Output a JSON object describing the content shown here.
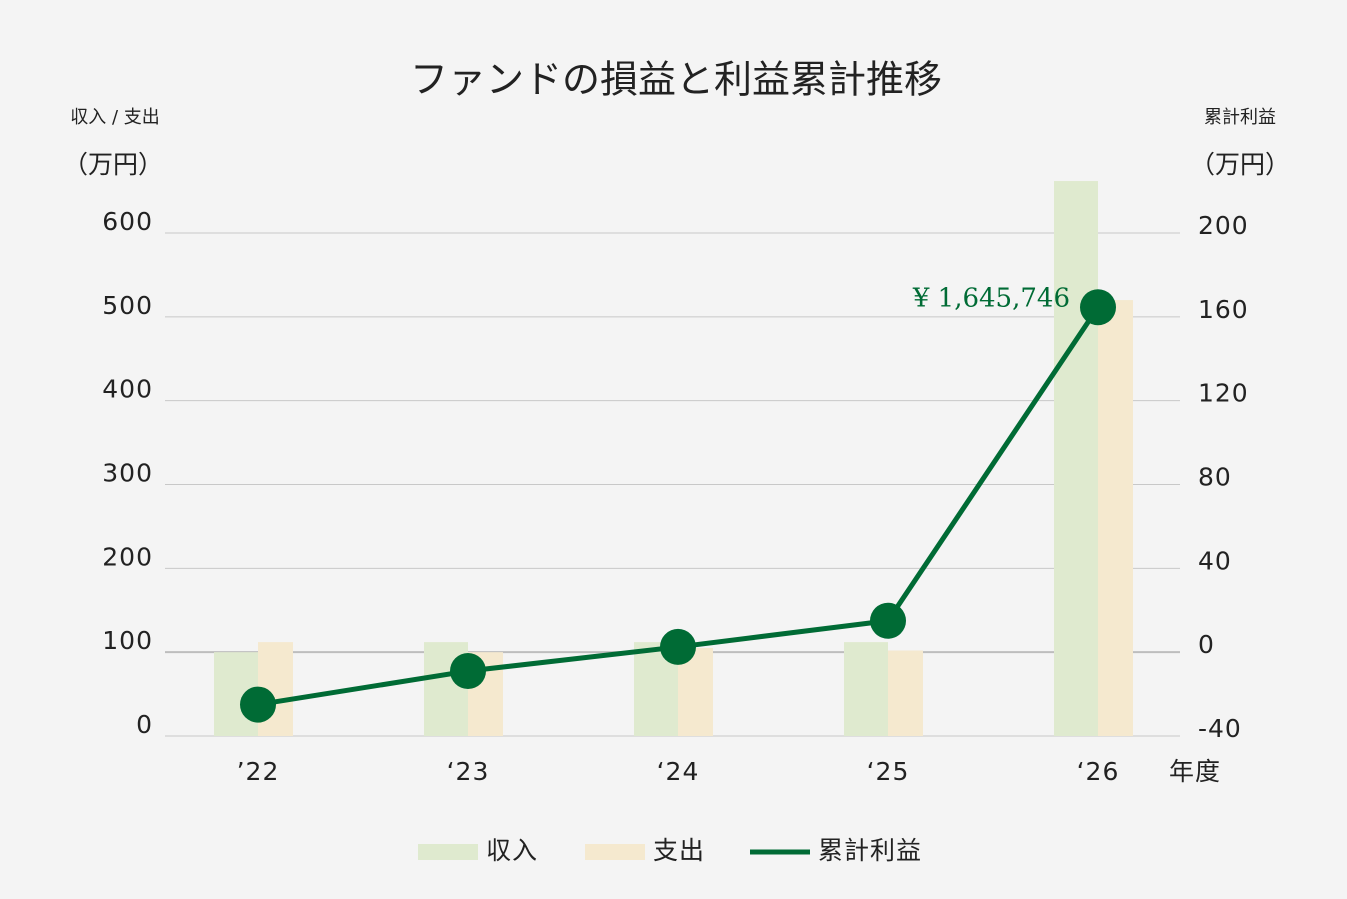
{
  "chart_data": {
    "type": "bar_line",
    "title": "ファンドの損益と利益累計推移",
    "ylabel": "収入 / 支出",
    "yunit": "（万円）",
    "y2label": "累計利益",
    "y2unit": "（万円）",
    "xlabel": "年度",
    "categories": [
      "’22",
      "‘23",
      "‘24",
      "‘25",
      "‘26"
    ],
    "series": [
      {
        "name": "収入",
        "type": "bar",
        "color": "#dfeacf",
        "values": [
          100,
          112,
          112,
          112,
          662
        ]
      },
      {
        "name": "支出",
        "type": "bar",
        "color": "#f5e9cf",
        "values": [
          112,
          100,
          105,
          102,
          520
        ]
      },
      {
        "name": "累計利益",
        "type": "line",
        "axis": "y2",
        "color": "#006b35",
        "values": [
          -25,
          -9,
          2.5,
          15,
          164.5746
        ],
        "value_labels": [
          null,
          null,
          null,
          null,
          "¥ 1,645,746"
        ]
      }
    ],
    "ylim": [
      0,
      670
    ],
    "yticks": [
      0,
      100,
      200,
      300,
      400,
      500,
      600
    ],
    "y2lim": [
      -40,
      228
    ],
    "y2ticks": [
      -40,
      0,
      40,
      80,
      120,
      160,
      200
    ],
    "grid": true
  }
}
